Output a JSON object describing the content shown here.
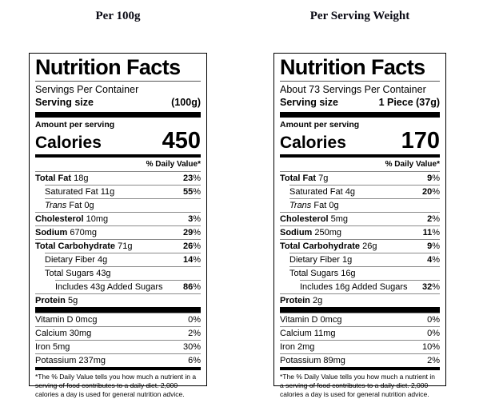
{
  "labels": [
    {
      "column_title": "Per 100g",
      "title": "Nutrition Facts",
      "servings_per_container": "Servings Per Container",
      "serving_size_label": "Serving size",
      "serving_size_value": "(100g)",
      "amount_per_serving": "Amount per serving",
      "calories_label": "Calories",
      "calories_value": "450",
      "daily_value_header": "% Daily Value*",
      "nutrients": [
        {
          "b": "Total Fat",
          "t": "18g",
          "pct": "23",
          "indent": 0
        },
        {
          "t": "Saturated Fat 11g",
          "pct": "55",
          "indent": 1
        },
        {
          "i": "Trans",
          "t": "Fat 0g",
          "pct": "",
          "indent": 1
        },
        {
          "b": "Cholesterol",
          "t": "10mg",
          "pct": "3",
          "indent": 0
        },
        {
          "b": "Sodium",
          "t": "670mg",
          "pct": "29",
          "indent": 0
        },
        {
          "b": "Total Carbohydrate",
          "t": "71g",
          "pct": "26",
          "indent": 0
        },
        {
          "t": "Dietary Fiber 4g",
          "pct": "14",
          "indent": 1
        },
        {
          "t": "Total Sugars 43g",
          "pct": "",
          "indent": 1
        },
        {
          "t": "Includes 43g Added Sugars",
          "pct": "86",
          "indent": 2
        },
        {
          "b": "Protein",
          "t": "5g",
          "pct": "",
          "indent": 0
        }
      ],
      "vitamins": [
        {
          "t": "Vitamin D 0mcg",
          "pct": "0"
        },
        {
          "t": "Calcium 30mg",
          "pct": "2"
        },
        {
          "t": "Iron 5mg",
          "pct": "30"
        },
        {
          "t": "Potassium 237mg",
          "pct": "6"
        }
      ],
      "footnote": "*The % Daily Value tells you how much a nutrient in a serving of food contributes to a daily diet. 2,000 calories a day is used for general nutrition advice."
    },
    {
      "column_title": "Per Serving Weight",
      "title": "Nutrition Facts",
      "servings_per_container": "About 73 Servings Per Container",
      "serving_size_label": "Serving size",
      "serving_size_value": "1 Piece (37g)",
      "amount_per_serving": "Amount per serving",
      "calories_label": "Calories",
      "calories_value": "170",
      "daily_value_header": "% Daily Value*",
      "nutrients": [
        {
          "b": "Total Fat",
          "t": "7g",
          "pct": "9",
          "indent": 0
        },
        {
          "t": "Saturated Fat 4g",
          "pct": "20",
          "indent": 1
        },
        {
          "i": "Trans",
          "t": "Fat 0g",
          "pct": "",
          "indent": 1
        },
        {
          "b": "Cholesterol",
          "t": "5mg",
          "pct": "2",
          "indent": 0
        },
        {
          "b": "Sodium",
          "t": "250mg",
          "pct": "11",
          "indent": 0
        },
        {
          "b": "Total Carbohydrate",
          "t": "26g",
          "pct": "9",
          "indent": 0
        },
        {
          "t": "Dietary Fiber 1g",
          "pct": "4",
          "indent": 1
        },
        {
          "t": "Total Sugars 16g",
          "pct": "",
          "indent": 1
        },
        {
          "t": "Includes 16g Added Sugars",
          "pct": "32",
          "indent": 2
        },
        {
          "b": "Protein",
          "t": "2g",
          "pct": "",
          "indent": 0
        }
      ],
      "vitamins": [
        {
          "t": "Vitamin D 0mcg",
          "pct": "0"
        },
        {
          "t": "Calcium 11mg",
          "pct": "0"
        },
        {
          "t": "Iron 2mg",
          "pct": "10"
        },
        {
          "t": "Potassium 89mg",
          "pct": "2"
        }
      ],
      "footnote": "*The % Daily Value tells you how much a nutrient in a serving of food contributes to a daily diet. 2,000 calories a day is used for general nutrition advice."
    }
  ]
}
